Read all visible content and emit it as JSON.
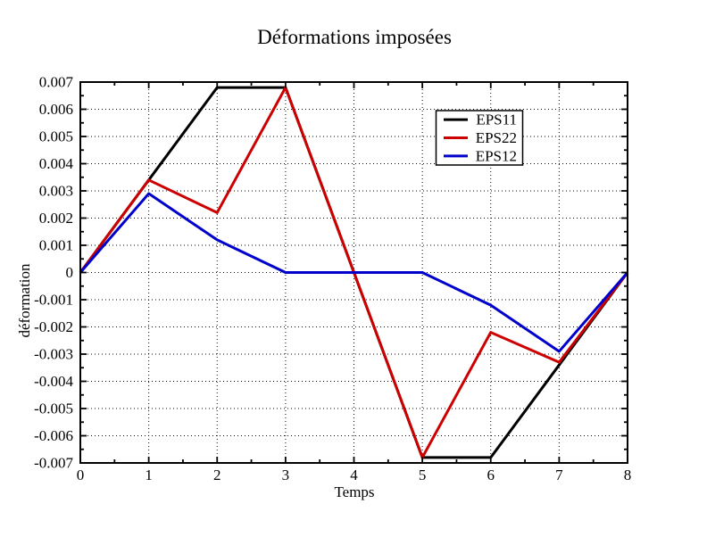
{
  "figure": {
    "background": "#ffffff"
  },
  "chart_data": {
    "type": "line",
    "title": "Déformations imposées",
    "xlabel": "Temps",
    "ylabel": "déformation",
    "xlim": [
      0,
      8
    ],
    "ylim": [
      -0.007,
      0.007
    ],
    "grid": true,
    "legend_position": "top-right-inside",
    "x": [
      0,
      1,
      2,
      3,
      4,
      5,
      6,
      7,
      8
    ],
    "series": [
      {
        "name": "EPS11",
        "color": "#000000",
        "values": [
          0,
          0.0034,
          0.0068,
          0.0068,
          0,
          -0.0068,
          -0.0068,
          -0.0034,
          0
        ]
      },
      {
        "name": "EPS22",
        "color": "#cc0000",
        "values": [
          0,
          0.0034,
          0.0022,
          0.0068,
          0,
          -0.0068,
          -0.0022,
          -0.0033,
          0
        ]
      },
      {
        "name": "EPS12",
        "color": "#0000cc",
        "values": [
          0,
          0.0029,
          0.0012,
          0,
          0,
          0,
          -0.0012,
          -0.0029,
          0
        ]
      }
    ],
    "xticks": {
      "values": [
        0,
        1,
        2,
        3,
        4,
        5,
        6,
        7,
        8
      ],
      "labels": [
        "0",
        "1",
        "2",
        "3",
        "4",
        "5",
        "6",
        "7",
        "8"
      ],
      "minor_step": 0.5
    },
    "yticks": {
      "values": [
        0.007,
        0.006,
        0.005,
        0.004,
        0.003,
        0.002,
        0.001,
        0,
        -0.001,
        -0.002,
        -0.003,
        -0.004,
        -0.005,
        -0.006,
        -0.007
      ],
      "labels": [
        "0.007",
        "0.006",
        "0.005",
        "0.004",
        "0.003",
        "0.002",
        "0.001",
        "0",
        "-0.001",
        "-0.002",
        "-0.003",
        "-0.004",
        "-0.005",
        "-0.006",
        "-0.007"
      ],
      "minor_step": 0.0005
    }
  }
}
